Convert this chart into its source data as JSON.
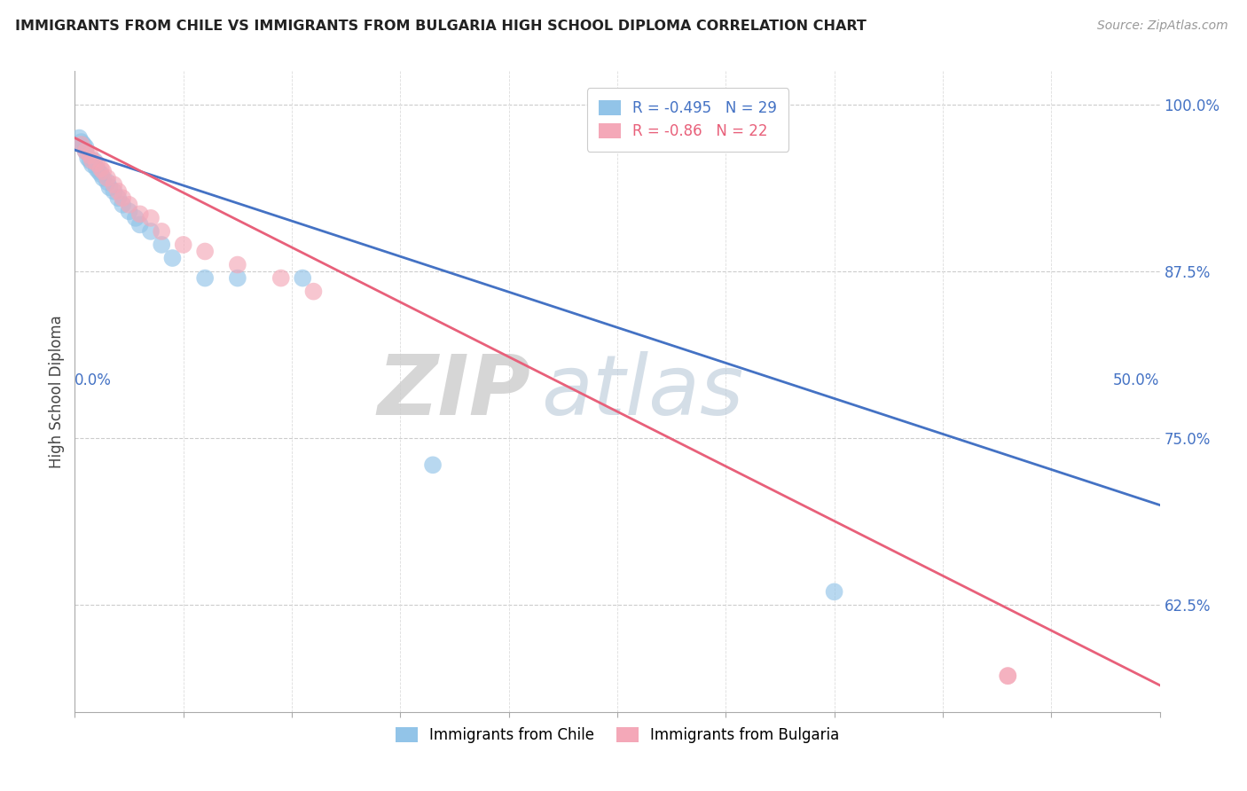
{
  "title": "IMMIGRANTS FROM CHILE VS IMMIGRANTS FROM BULGARIA HIGH SCHOOL DIPLOMA CORRELATION CHART",
  "source": "Source: ZipAtlas.com",
  "ylabel": "High School Diploma",
  "ylabel_right_ticks": [
    "100.0%",
    "87.5%",
    "75.0%",
    "62.5%"
  ],
  "ylabel_right_vals": [
    1.0,
    0.875,
    0.75,
    0.625
  ],
  "xmin": 0.0,
  "xmax": 0.5,
  "ymin": 0.545,
  "ymax": 1.025,
  "chile_color": "#92C4E8",
  "bulgaria_color": "#F4A8B8",
  "chile_R": -0.495,
  "chile_N": 29,
  "bulgaria_R": -0.86,
  "bulgaria_N": 22,
  "chile_line_color": "#4472C4",
  "bulgaria_line_color": "#E8607A",
  "watermark_zip": "ZIP",
  "watermark_atlas": "atlas",
  "chile_x": [
    0.002,
    0.003,
    0.004,
    0.005,
    0.005,
    0.006,
    0.007,
    0.008,
    0.009,
    0.01,
    0.011,
    0.012,
    0.013,
    0.015,
    0.016,
    0.018,
    0.02,
    0.022,
    0.025,
    0.028,
    0.03,
    0.035,
    0.04,
    0.045,
    0.06,
    0.075,
    0.105,
    0.165,
    0.35
  ],
  "chile_y": [
    0.975,
    0.972,
    0.97,
    0.968,
    0.965,
    0.96,
    0.958,
    0.955,
    0.958,
    0.952,
    0.95,
    0.948,
    0.945,
    0.942,
    0.938,
    0.935,
    0.93,
    0.925,
    0.92,
    0.915,
    0.91,
    0.905,
    0.895,
    0.885,
    0.87,
    0.87,
    0.87,
    0.73,
    0.635
  ],
  "bulgaria_x": [
    0.003,
    0.005,
    0.007,
    0.008,
    0.01,
    0.012,
    0.013,
    0.015,
    0.018,
    0.02,
    0.022,
    0.025,
    0.03,
    0.035,
    0.04,
    0.05,
    0.06,
    0.075,
    0.095,
    0.11,
    0.43,
    0.43
  ],
  "bulgaria_y": [
    0.97,
    0.965,
    0.962,
    0.958,
    0.956,
    0.952,
    0.95,
    0.945,
    0.94,
    0.935,
    0.93,
    0.925,
    0.918,
    0.915,
    0.905,
    0.895,
    0.89,
    0.88,
    0.87,
    0.86,
    0.572,
    0.572
  ],
  "chile_line_x0": 0.0,
  "chile_line_y0": 0.966,
  "chile_line_x1": 0.5,
  "chile_line_y1": 0.7,
  "bulgaria_line_x0": 0.0,
  "bulgaria_line_y0": 0.975,
  "bulgaria_line_x1": 0.5,
  "bulgaria_line_y1": 0.565
}
